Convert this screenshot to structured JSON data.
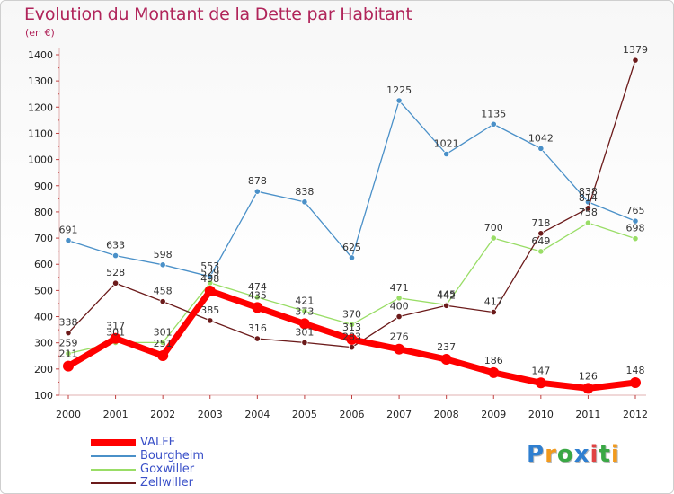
{
  "title": "Evolution du Montant de la Dette par Habitant",
  "unit": "(en €)",
  "logo": {
    "text": "Proxiti",
    "colors": [
      "#2f7fd0",
      "#f29a1d",
      "#3aa845",
      "#2f7fd0",
      "#e04343",
      "#3aa845",
      "#f29a1d"
    ]
  },
  "chart_data": {
    "type": "line",
    "x": [
      "2000",
      "2001",
      "2002",
      "2003",
      "2004",
      "2005",
      "2006",
      "2007",
      "2008",
      "2009",
      "2010",
      "2011",
      "2012"
    ],
    "ylim": [
      100,
      1400
    ],
    "yticks": [
      100,
      200,
      300,
      400,
      500,
      600,
      700,
      800,
      900,
      1000,
      1100,
      1200,
      1300,
      1400
    ],
    "grid": false,
    "legend": "bottom-left",
    "series": [
      {
        "name": "VALFF",
        "color": "#ff0000",
        "values": [
          211,
          317,
          251,
          498,
          435,
          373,
          313,
          276,
          237,
          186,
          147,
          126,
          148
        ]
      },
      {
        "name": "Bourgheim",
        "color": "#4a90c8",
        "values": [
          691,
          633,
          598,
          553,
          878,
          838,
          625,
          1225,
          1021,
          1135,
          1042,
          838,
          765
        ]
      },
      {
        "name": "Goxwiller",
        "color": "#99dd66",
        "values": [
          259,
          301,
          301,
          529,
          474,
          421,
          370,
          471,
          445,
          700,
          649,
          758,
          698
        ]
      },
      {
        "name": "Zellwiller",
        "color": "#6b1a1a",
        "values": [
          338,
          528,
          458,
          385,
          316,
          301,
          283,
          400,
          442,
          417,
          718,
          814,
          1379
        ]
      }
    ]
  }
}
